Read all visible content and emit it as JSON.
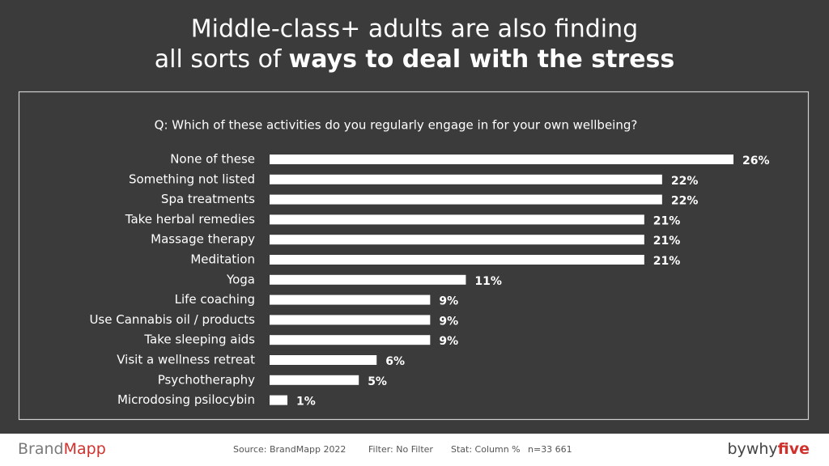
{
  "title_line1": "Middle-class+ adults are also finding",
  "title_line2": "all sorts of",
  "title_line2_bold": "ways to deal with the stress",
  "footer": {
    "logo_left": [
      "Brand",
      "Mapp"
    ],
    "source": "Source: BrandMapp 2022",
    "filter": "Filter: No Filter",
    "stat": "Stat: Column %",
    "n": "n=33 661",
    "logo_right": [
      "by",
      "why",
      "five"
    ]
  },
  "chart_data": {
    "type": "bar",
    "orientation": "horizontal",
    "title": "Q: Which of these activities do you regularly engage in for your own wellbeing?",
    "categories": [
      "None of these",
      "Something not listed",
      "Spa treatments",
      "Take herbal remedies",
      "Massage therapy",
      "Meditation",
      "Yoga",
      "Life coaching",
      "Use Cannabis oil / products",
      "Take sleeping aids",
      "Visit a wellness retreat",
      "Psychotheraphy",
      "Microdosing psilocybin"
    ],
    "values": [
      26,
      22,
      22,
      21,
      21,
      21,
      11,
      9,
      9,
      9,
      6,
      5,
      1
    ],
    "value_labels": [
      "26%",
      "22%",
      "22%",
      "21%",
      "21%",
      "21%",
      "11%",
      "9%",
      "9%",
      "9%",
      "6%",
      "5%",
      "1%"
    ],
    "color": "#ffffff"
  }
}
